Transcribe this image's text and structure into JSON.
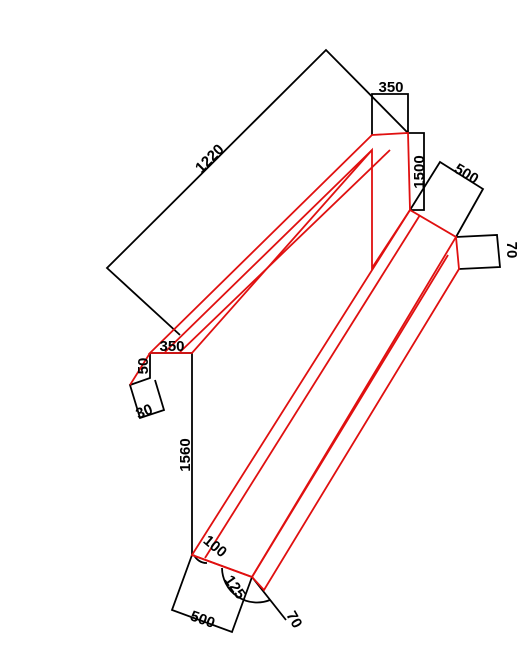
{
  "colors": {
    "outline": "#000000",
    "profile": "#e01010",
    "background": "#ffffff"
  },
  "dimensions": {
    "top_long_edge": "1220",
    "top_cap_width": "350",
    "top_right_height": "1500",
    "right_flange_width": "500",
    "right_flange_edge": "70",
    "left_cap_width": "350",
    "left_hook_short": "50",
    "left_hook_tip": "30",
    "left_vertical_height": "1560",
    "bottom_angle_left": "100",
    "bottom_angle_right": "125",
    "bottom_flange_width": "500",
    "bottom_flange_edge": "70"
  }
}
